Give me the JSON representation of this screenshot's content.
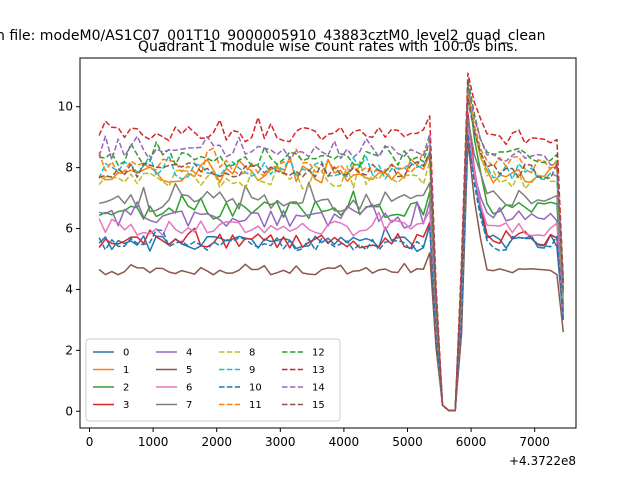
{
  "chart_data": {
    "type": "line",
    "suptitle": "n file: modeM0/AS1C07_001T10_9000005910_43883cztM0_level2_quad_clean",
    "title": "Quadrant 1 module wise count rates with 100.0s bins.",
    "xlabel": "",
    "ylabel": "",
    "x_offset_label": "+4.3722e8",
    "xlim": [
      -150,
      7650
    ],
    "ylim": [
      -0.55,
      11.6
    ],
    "x_ticks": [
      0,
      1000,
      2000,
      3000,
      4000,
      5000,
      6000,
      7000
    ],
    "x_tick_labels": [
      "0",
      "1000",
      "2000",
      "3000",
      "4000",
      "5000",
      "6000",
      "7000"
    ],
    "y_ticks": [
      0,
      2,
      4,
      6,
      8,
      10
    ],
    "y_tick_labels": [
      "0",
      "2",
      "4",
      "6",
      "8",
      "10"
    ],
    "grid": false,
    "legend": {
      "placement": "lower-left",
      "columns": 4
    },
    "x_start": 150,
    "x_step": 100,
    "series": [
      {
        "name": "0",
        "color": "#1f77b4",
        "dash": "solid",
        "base": 5.5,
        "amp": 0.25,
        "post": 5.6,
        "peak": 9.6,
        "end": 3.0,
        "seed": 1
      },
      {
        "name": "1",
        "color": "#ff7f0e",
        "dash": "solid",
        "base": 7.8,
        "amp": 0.3,
        "post": 7.8,
        "peak": 10.4,
        "end": 3.8,
        "seed": 2
      },
      {
        "name": "2",
        "color": "#2ca02c",
        "dash": "solid",
        "base": 6.6,
        "amp": 0.3,
        "post": 6.7,
        "peak": 10.8,
        "end": 3.4,
        "seed": 3
      },
      {
        "name": "3",
        "color": "#d62728",
        "dash": "solid",
        "base": 5.6,
        "amp": 0.25,
        "post": 5.7,
        "peak": 9.8,
        "end": 3.2,
        "seed": 4
      },
      {
        "name": "4",
        "color": "#9467bd",
        "dash": "solid",
        "base": 6.3,
        "amp": 0.3,
        "post": 6.4,
        "peak": 8.9,
        "end": 3.3,
        "seed": 5
      },
      {
        "name": "5",
        "color": "#8c564b",
        "dash": "solid",
        "base": 4.6,
        "amp": 0.12,
        "post": 4.6,
        "peak": 8.9,
        "end": 2.6,
        "seed": 6
      },
      {
        "name": "6",
        "color": "#e377c2",
        "dash": "solid",
        "base": 6.0,
        "amp": 0.25,
        "post": 6.0,
        "peak": 9.4,
        "end": 3.2,
        "seed": 7
      },
      {
        "name": "7",
        "color": "#7f7f7f",
        "dash": "solid",
        "base": 6.9,
        "amp": 0.35,
        "post": 7.0,
        "peak": 9.6,
        "end": 3.5,
        "seed": 8
      },
      {
        "name": "8",
        "color": "#bcbd22",
        "dash": "dashed",
        "base": 7.6,
        "amp": 0.3,
        "post": 7.6,
        "peak": 10.5,
        "end": 3.7,
        "seed": 9
      },
      {
        "name": "9",
        "color": "#17becf",
        "dash": "dashed",
        "base": 7.9,
        "amp": 0.3,
        "post": 7.9,
        "peak": 10.2,
        "end": 3.9,
        "seed": 10
      },
      {
        "name": "10",
        "color": "#1f77b4",
        "dash": "dashed",
        "base": 5.5,
        "amp": 0.25,
        "post": 5.5,
        "peak": 9.1,
        "end": 3.1,
        "seed": 11
      },
      {
        "name": "11",
        "color": "#ff7f0e",
        "dash": "dashed",
        "base": 8.0,
        "amp": 0.3,
        "post": 8.1,
        "peak": 10.5,
        "end": 4.0,
        "seed": 12
      },
      {
        "name": "12",
        "color": "#2ca02c",
        "dash": "dashed",
        "base": 8.3,
        "amp": 0.25,
        "post": 8.4,
        "peak": 10.9,
        "end": 4.2,
        "seed": 13
      },
      {
        "name": "13",
        "color": "#d62728",
        "dash": "dashed",
        "base": 9.1,
        "amp": 0.25,
        "post": 9.0,
        "peak": 11.1,
        "end": 4.3,
        "seed": 14
      },
      {
        "name": "14",
        "color": "#9467bd",
        "dash": "dashed",
        "base": 8.5,
        "amp": 0.25,
        "post": 8.3,
        "peak": 10.7,
        "end": 4.2,
        "seed": 15
      },
      {
        "name": "15",
        "color": "#8c564b",
        "dash": "dashed",
        "base": 7.9,
        "amp": 0.25,
        "post": 7.9,
        "peak": 10.3,
        "end": 3.9,
        "seed": 16
      }
    ]
  }
}
